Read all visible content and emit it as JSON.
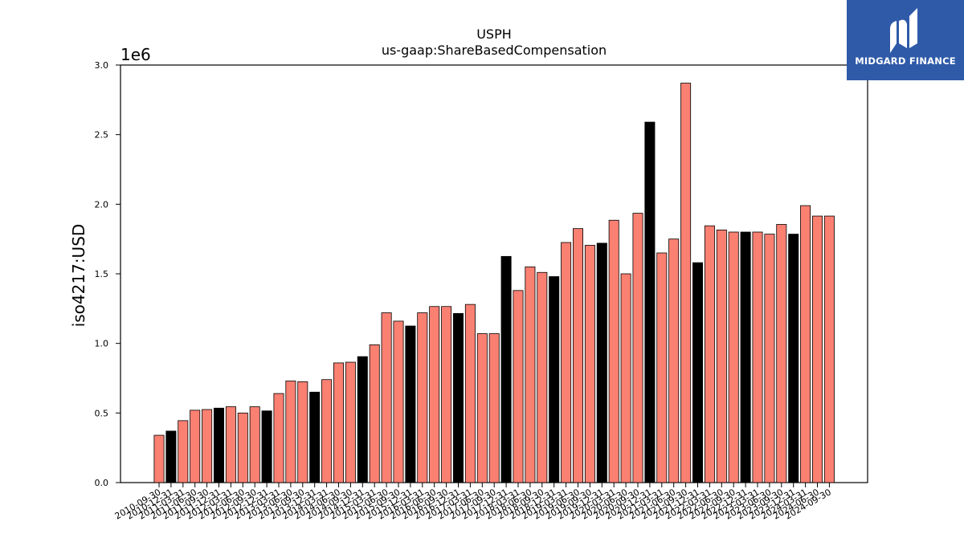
{
  "chart_data": {
    "type": "bar",
    "title": "USPH",
    "subtitle": "us-gaap:ShareBasedCompensation",
    "ylabel": "iso4217:USD",
    "xlabel": "",
    "offset_label": "1e6",
    "ylim": [
      0,
      3000000
    ],
    "yticks": [
      "0.0",
      "0.5",
      "1.0",
      "1.5",
      "2.0",
      "2.5",
      "3.0"
    ],
    "categories": [
      "2010-09-30",
      "2010-12-31",
      "2011-03-31",
      "2011-06-30",
      "2011-09-30",
      "2011-12-31",
      "2012-03-31",
      "2012-06-30",
      "2012-09-30",
      "2012-12-31",
      "2013-03-31",
      "2013-06-30",
      "2013-09-30",
      "2013-12-31",
      "2014-03-31",
      "2014-06-30",
      "2014-09-30",
      "2014-12-31",
      "2015-03-31",
      "2015-06-30",
      "2015-09-30",
      "2015-12-31",
      "2016-03-31",
      "2016-06-30",
      "2016-09-30",
      "2016-12-31",
      "2017-03-31",
      "2017-06-30",
      "2017-09-30",
      "2017-12-31",
      "2018-03-31",
      "2018-06-30",
      "2018-09-30",
      "2018-12-31",
      "2019-03-31",
      "2019-06-30",
      "2019-09-30",
      "2019-12-31",
      "2020-03-31",
      "2020-06-30",
      "2020-09-30",
      "2020-12-31",
      "2021-03-31",
      "2021-06-30",
      "2021-09-30",
      "2021-12-31",
      "2022-03-31",
      "2022-06-30",
      "2022-09-30",
      "2022-12-31",
      "2023-03-31",
      "2023-06-30",
      "2023-09-30",
      "2023-12-31",
      "2024-03-31",
      "2024-06-30",
      "2024-09-30"
    ],
    "values": [
      340000,
      370000,
      445000,
      520000,
      525000,
      535000,
      545000,
      500000,
      545000,
      515000,
      640000,
      730000,
      725000,
      650000,
      740000,
      860000,
      865000,
      905000,
      990000,
      1220000,
      1160000,
      1125000,
      1220000,
      1265000,
      1265000,
      1215000,
      1280000,
      1070000,
      1070000,
      1625000,
      1380000,
      1550000,
      1510000,
      1480000,
      1725000,
      1825000,
      1705000,
      1720000,
      1885000,
      1500000,
      1935000,
      2590000,
      1650000,
      1750000,
      2870000,
      1580000,
      1845000,
      1815000,
      1800000,
      1800000,
      1800000,
      1785000,
      1855000,
      1785000,
      1990000,
      1915000,
      1915000
    ],
    "highlight": [
      false,
      true,
      false,
      false,
      false,
      true,
      false,
      false,
      false,
      true,
      false,
      false,
      false,
      true,
      false,
      false,
      false,
      true,
      false,
      false,
      false,
      true,
      false,
      false,
      false,
      true,
      false,
      false,
      false,
      true,
      false,
      false,
      false,
      true,
      false,
      false,
      false,
      true,
      false,
      false,
      false,
      true,
      false,
      false,
      false,
      true,
      false,
      false,
      false,
      true,
      false,
      false,
      false,
      true,
      false,
      false,
      false
    ],
    "colors": {
      "bar": "#fa8072",
      "highlight": "#000000",
      "edge": "#000000"
    },
    "grid": false,
    "legend": "none"
  },
  "logo": {
    "text": "MIDGARD FINANCE",
    "icon": "midgard-logo-icon"
  }
}
